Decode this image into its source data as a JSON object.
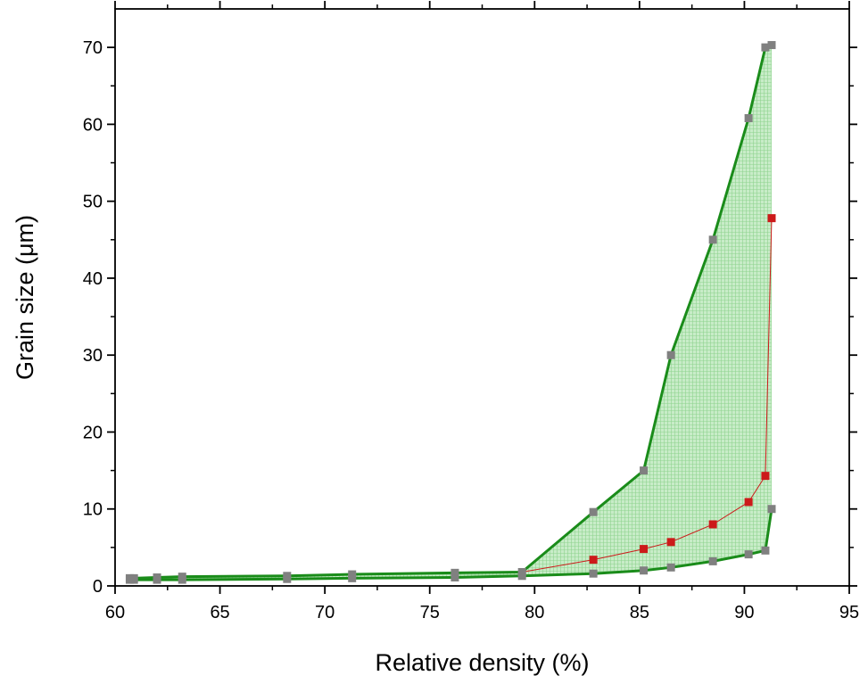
{
  "chart_data": {
    "type": "line",
    "title": "",
    "xlabel": "Relative density (%)",
    "ylabel": "Grain size (μm)",
    "xlim": [
      60,
      95
    ],
    "ylim": [
      0,
      75
    ],
    "x_ticks": [
      60,
      65,
      70,
      75,
      80,
      85,
      90,
      95
    ],
    "y_ticks": [
      0,
      10,
      20,
      30,
      40,
      50,
      60,
      70
    ],
    "grid": false,
    "legend": "none",
    "colors": {
      "band_edge": "#1a8c1a",
      "band_fill": "#c8ecc8",
      "band_hatch": "#8fd48f",
      "middle_series": "#cc1a1a",
      "markers": "#808080"
    },
    "series": [
      {
        "role": "upper",
        "x": [
          60.7,
          60.9,
          62.0,
          63.2,
          68.2,
          71.3,
          76.2,
          79.4,
          82.8,
          85.2,
          86.5,
          88.5,
          90.2,
          91.0,
          91.3
        ],
        "y": [
          1.0,
          1.0,
          1.1,
          1.2,
          1.3,
          1.5,
          1.7,
          1.8,
          9.6,
          15.0,
          30.0,
          45.0,
          60.8,
          70.0,
          70.3
        ]
      },
      {
        "role": "middle",
        "x": [
          79.4,
          82.8,
          85.2,
          86.5,
          88.5,
          90.2,
          91.0,
          91.3
        ],
        "y": [
          1.8,
          3.4,
          4.8,
          5.7,
          8.0,
          10.9,
          14.3,
          47.8
        ]
      },
      {
        "role": "lower",
        "x": [
          60.7,
          60.9,
          62.0,
          63.2,
          68.2,
          71.3,
          76.2,
          79.4,
          82.8,
          85.2,
          86.5,
          88.5,
          90.2,
          91.0,
          91.3
        ],
        "y": [
          0.8,
          0.8,
          0.8,
          0.8,
          0.9,
          1.0,
          1.1,
          1.3,
          1.6,
          2.0,
          2.4,
          3.2,
          4.1,
          4.6,
          10.0
        ]
      }
    ]
  }
}
